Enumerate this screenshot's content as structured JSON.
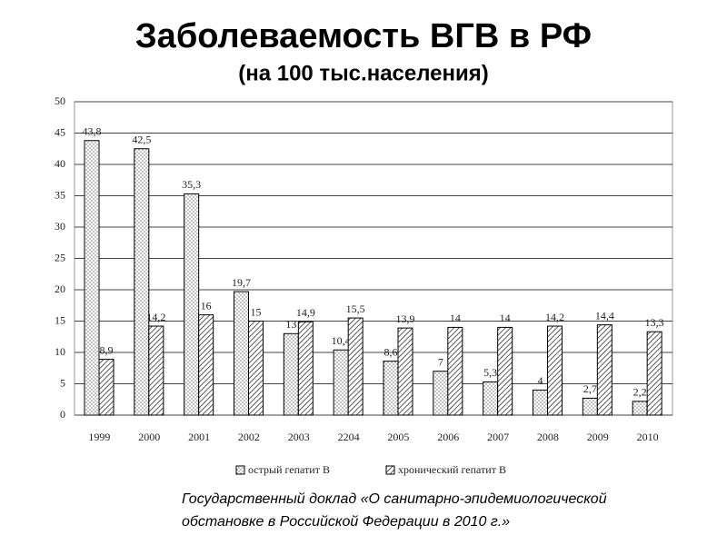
{
  "chart_data": {
    "type": "bar",
    "title": "Заболеваемость ВГВ в РФ",
    "subtitle": "(на 100 тыс.населения)",
    "categories": [
      "1999",
      "2000",
      "2001",
      "2002",
      "2003",
      "2204",
      "2005",
      "2006",
      "2007",
      "2008",
      "2009",
      "2010"
    ],
    "series": [
      {
        "name": "острый гепатит В",
        "color": "#000000",
        "pattern": "dots",
        "values": [
          43.8,
          42.5,
          35.3,
          19.7,
          13,
          10.4,
          8.6,
          7,
          5.3,
          4,
          2.7,
          2.2
        ],
        "value_labels": [
          "43,8",
          "42,5",
          "35,3",
          "19,7",
          "13",
          "10,4",
          "8,6",
          "7",
          "5,3",
          "4",
          "2,7",
          "2,2"
        ]
      },
      {
        "name": "хронический гепатит В",
        "color": "#000000",
        "pattern": "hatch",
        "values": [
          8.9,
          14.2,
          16,
          15,
          14.9,
          15.5,
          13.9,
          14,
          14,
          14.2,
          14.4,
          13.3
        ],
        "value_labels": [
          "8,9",
          "14,2",
          "16",
          "15",
          "14,9",
          "15,5",
          "13,9",
          "14",
          "14",
          "14,2",
          "14,4",
          "13,3"
        ]
      }
    ],
    "ylim": [
      0,
      50
    ],
    "yticks": [
      0,
      5,
      10,
      15,
      20,
      25,
      30,
      35,
      40,
      45,
      50
    ],
    "grid": true,
    "legend": "bottom",
    "source": [
      "Государственный доклад «О санитарно-эпидемиологической",
      "обстановке в Российской Федерации в 2010 г.»"
    ]
  }
}
